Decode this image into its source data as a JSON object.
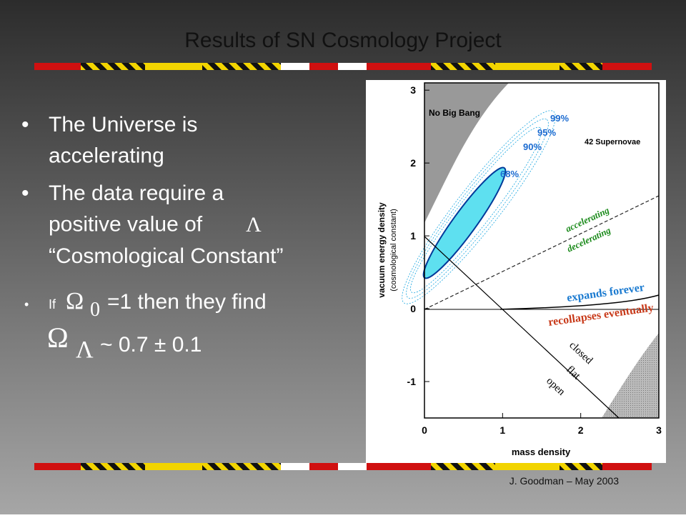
{
  "slide": {
    "title": "Results of SN Cosmology Project",
    "bullets": [
      {
        "parts": [
          "The Universe is accelerating"
        ]
      },
      {
        "parts": [
          "The data require a positive value of ",
          "Λ",
          "“Cosmological Constant”"
        ]
      },
      {
        "parts": [
          "If ",
          "Ω",
          "0",
          " =1 then they find",
          "Ω",
          "Λ",
          " ~ 0.7 ± 0.1"
        ]
      }
    ],
    "footer": "J. Goodman – May 2003"
  },
  "figure": {
    "xlabel": "mass density",
    "ylabel": "vacuum energy density",
    "ylabel2": "(cosmological constant)",
    "xlim": [
      0,
      3
    ],
    "ylim": [
      -1.5,
      3.1
    ],
    "xticks": [
      0,
      1,
      2,
      3
    ],
    "yticks": [
      -1,
      0,
      1,
      2,
      3
    ],
    "annotations": {
      "no_big_bang": "No Big Bang",
      "sn": "42 Supernovae",
      "c99": "99%",
      "c95": "95%",
      "c90": "90%",
      "c68": "68%",
      "accel": "accelerating",
      "decel": "decelerating",
      "expands": "expands forever",
      "recollapses": "recollapses eventually",
      "closed": "closed",
      "flat": "flat",
      "open": "open"
    }
  }
}
